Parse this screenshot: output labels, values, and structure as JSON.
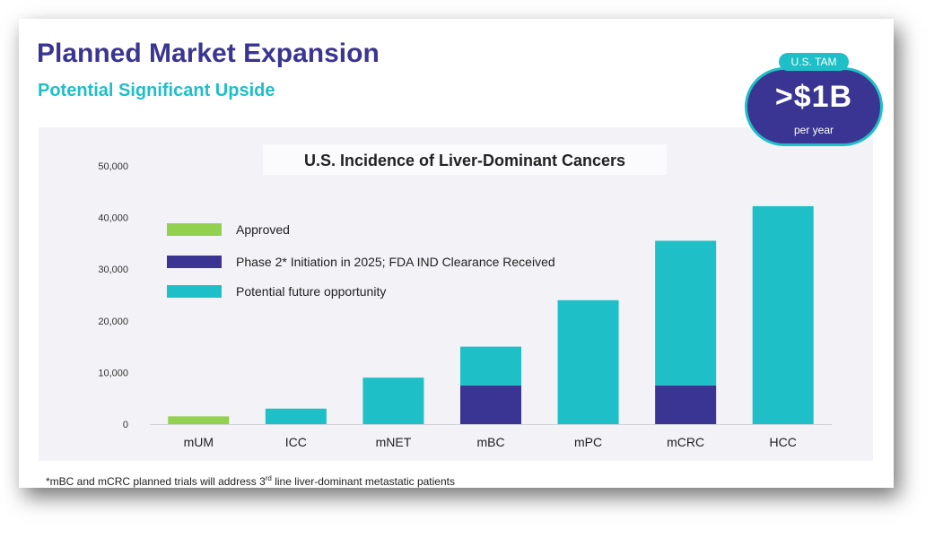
{
  "slide": {
    "title": "Planned Market Expansion",
    "subtitle": "Potential Significant Upside",
    "footnote_pre": "*mBC and mCRC planned trials will address 3",
    "footnote_sup": "rd",
    "footnote_post": " line liver-dominant metastatic patients"
  },
  "badge": {
    "tab_label": "U.S. TAM",
    "value": ">$1B",
    "unit": "per year"
  },
  "colors": {
    "approved": "#92d050",
    "phase2": "#3a3592",
    "future": "#1fbfc7",
    "title": "#3a3592",
    "accent": "#1fbfc7"
  },
  "chart_data": {
    "type": "bar",
    "stacked": true,
    "title": "U.S. Incidence of Liver-Dominant Cancers",
    "categories": [
      "mUM",
      "ICC",
      "mNET",
      "mBC",
      "mPC",
      "mCRC",
      "HCC"
    ],
    "series": [
      {
        "name": "Approved",
        "color_key": "approved",
        "values": [
          1500,
          0,
          0,
          0,
          0,
          0,
          0
        ]
      },
      {
        "name": "Phase 2* Initiation in 2025; FDA IND Clearance Received",
        "color_key": "phase2",
        "values": [
          0,
          0,
          0,
          7500,
          0,
          7500,
          0
        ]
      },
      {
        "name": "Potential future opportunity",
        "color_key": "future",
        "values": [
          0,
          3000,
          9000,
          7500,
          24000,
          28000,
          42200
        ]
      }
    ],
    "ylim": [
      0,
      50000
    ],
    "yticks": [
      0,
      10000,
      20000,
      30000,
      40000,
      50000
    ],
    "ytick_labels": [
      "0",
      "10,000",
      "20,000",
      "30,000",
      "40,000",
      "50,000"
    ],
    "xlabel": "",
    "ylabel": "",
    "legend_position": "top-left",
    "grid": false
  }
}
